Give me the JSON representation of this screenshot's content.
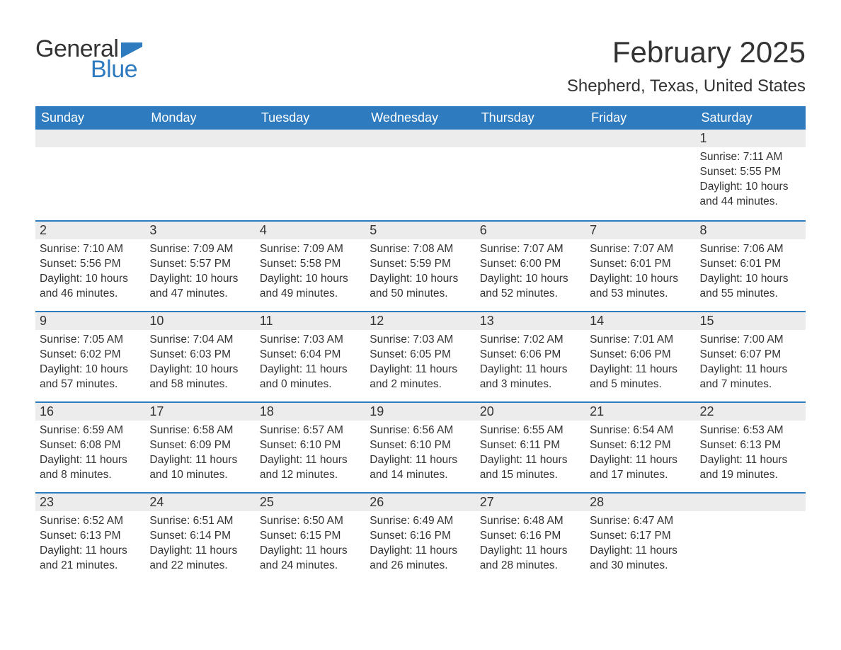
{
  "logo": {
    "word1": "General",
    "word2": "Blue",
    "flag_color": "#2f7bbf",
    "text_dark": "#333333"
  },
  "header": {
    "month_title": "February 2025",
    "location": "Shepherd, Texas, United States",
    "title_fontsize": 42,
    "location_fontsize": 24
  },
  "colors": {
    "header_bg": "#2f7bbf",
    "header_text": "#ffffff",
    "daynum_bg": "#ececec",
    "border_top": "#2f7bbf",
    "body_text": "#333333",
    "page_bg": "#ffffff"
  },
  "typography": {
    "cell_fontsize": 15.5,
    "dayheader_fontsize": 18,
    "daynum_fontsize": 18,
    "font_family": "Arial"
  },
  "day_headers": [
    "Sunday",
    "Monday",
    "Tuesday",
    "Wednesday",
    "Thursday",
    "Friday",
    "Saturday"
  ],
  "labels": {
    "sunrise": "Sunrise:",
    "sunset": "Sunset:",
    "daylight": "Daylight:"
  },
  "weeks": [
    [
      null,
      null,
      null,
      null,
      null,
      null,
      {
        "num": "1",
        "sunrise": "7:11 AM",
        "sunset": "5:55 PM",
        "daylight": "10 hours and 44 minutes."
      }
    ],
    [
      {
        "num": "2",
        "sunrise": "7:10 AM",
        "sunset": "5:56 PM",
        "daylight": "10 hours and 46 minutes."
      },
      {
        "num": "3",
        "sunrise": "7:09 AM",
        "sunset": "5:57 PM",
        "daylight": "10 hours and 47 minutes."
      },
      {
        "num": "4",
        "sunrise": "7:09 AM",
        "sunset": "5:58 PM",
        "daylight": "10 hours and 49 minutes."
      },
      {
        "num": "5",
        "sunrise": "7:08 AM",
        "sunset": "5:59 PM",
        "daylight": "10 hours and 50 minutes."
      },
      {
        "num": "6",
        "sunrise": "7:07 AM",
        "sunset": "6:00 PM",
        "daylight": "10 hours and 52 minutes."
      },
      {
        "num": "7",
        "sunrise": "7:07 AM",
        "sunset": "6:01 PM",
        "daylight": "10 hours and 53 minutes."
      },
      {
        "num": "8",
        "sunrise": "7:06 AM",
        "sunset": "6:01 PM",
        "daylight": "10 hours and 55 minutes."
      }
    ],
    [
      {
        "num": "9",
        "sunrise": "7:05 AM",
        "sunset": "6:02 PM",
        "daylight": "10 hours and 57 minutes."
      },
      {
        "num": "10",
        "sunrise": "7:04 AM",
        "sunset": "6:03 PM",
        "daylight": "10 hours and 58 minutes."
      },
      {
        "num": "11",
        "sunrise": "7:03 AM",
        "sunset": "6:04 PM",
        "daylight": "11 hours and 0 minutes."
      },
      {
        "num": "12",
        "sunrise": "7:03 AM",
        "sunset": "6:05 PM",
        "daylight": "11 hours and 2 minutes."
      },
      {
        "num": "13",
        "sunrise": "7:02 AM",
        "sunset": "6:06 PM",
        "daylight": "11 hours and 3 minutes."
      },
      {
        "num": "14",
        "sunrise": "7:01 AM",
        "sunset": "6:06 PM",
        "daylight": "11 hours and 5 minutes."
      },
      {
        "num": "15",
        "sunrise": "7:00 AM",
        "sunset": "6:07 PM",
        "daylight": "11 hours and 7 minutes."
      }
    ],
    [
      {
        "num": "16",
        "sunrise": "6:59 AM",
        "sunset": "6:08 PM",
        "daylight": "11 hours and 8 minutes."
      },
      {
        "num": "17",
        "sunrise": "6:58 AM",
        "sunset": "6:09 PM",
        "daylight": "11 hours and 10 minutes."
      },
      {
        "num": "18",
        "sunrise": "6:57 AM",
        "sunset": "6:10 PM",
        "daylight": "11 hours and 12 minutes."
      },
      {
        "num": "19",
        "sunrise": "6:56 AM",
        "sunset": "6:10 PM",
        "daylight": "11 hours and 14 minutes."
      },
      {
        "num": "20",
        "sunrise": "6:55 AM",
        "sunset": "6:11 PM",
        "daylight": "11 hours and 15 minutes."
      },
      {
        "num": "21",
        "sunrise": "6:54 AM",
        "sunset": "6:12 PM",
        "daylight": "11 hours and 17 minutes."
      },
      {
        "num": "22",
        "sunrise": "6:53 AM",
        "sunset": "6:13 PM",
        "daylight": "11 hours and 19 minutes."
      }
    ],
    [
      {
        "num": "23",
        "sunrise": "6:52 AM",
        "sunset": "6:13 PM",
        "daylight": "11 hours and 21 minutes."
      },
      {
        "num": "24",
        "sunrise": "6:51 AM",
        "sunset": "6:14 PM",
        "daylight": "11 hours and 22 minutes."
      },
      {
        "num": "25",
        "sunrise": "6:50 AM",
        "sunset": "6:15 PM",
        "daylight": "11 hours and 24 minutes."
      },
      {
        "num": "26",
        "sunrise": "6:49 AM",
        "sunset": "6:16 PM",
        "daylight": "11 hours and 26 minutes."
      },
      {
        "num": "27",
        "sunrise": "6:48 AM",
        "sunset": "6:16 PM",
        "daylight": "11 hours and 28 minutes."
      },
      {
        "num": "28",
        "sunrise": "6:47 AM",
        "sunset": "6:17 PM",
        "daylight": "11 hours and 30 minutes."
      },
      null
    ]
  ]
}
